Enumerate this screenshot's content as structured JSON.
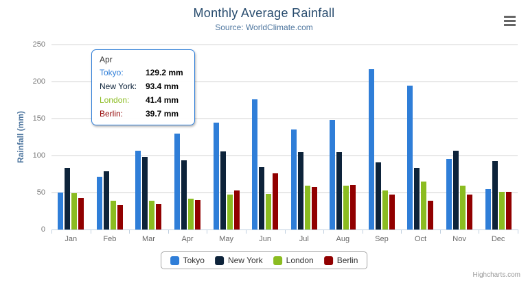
{
  "chart_data": {
    "type": "bar",
    "title": "Monthly Average Rainfall",
    "subtitle": "Source: WorldClimate.com",
    "categories": [
      "Jan",
      "Feb",
      "Mar",
      "Apr",
      "May",
      "Jun",
      "Jul",
      "Aug",
      "Sep",
      "Oct",
      "Nov",
      "Dec"
    ],
    "series": [
      {
        "name": "Tokyo",
        "color": "#2f7ed8",
        "values": [
          49.9,
          71.5,
          106.4,
          129.2,
          144.0,
          176.0,
          135.6,
          148.5,
          216.4,
          194.1,
          95.6,
          54.4
        ]
      },
      {
        "name": "New York",
        "color": "#0d233a",
        "values": [
          83.6,
          78.8,
          98.5,
          93.4,
          106.0,
          84.5,
          105.0,
          104.3,
          91.2,
          83.5,
          106.6,
          92.3
        ]
      },
      {
        "name": "London",
        "color": "#8bbc21",
        "values": [
          48.9,
          38.8,
          39.3,
          41.4,
          47.0,
          48.3,
          59.0,
          59.6,
          52.4,
          65.2,
          59.3,
          51.2
        ]
      },
      {
        "name": "Berlin",
        "color": "#910000",
        "values": [
          42.4,
          33.2,
          34.5,
          39.7,
          52.6,
          75.5,
          57.4,
          60.4,
          47.6,
          39.1,
          46.8,
          51.1
        ]
      }
    ],
    "xlabel": "",
    "ylabel": "Rainfall (mm)",
    "ylim": [
      0,
      250
    ],
    "yticks": [
      0,
      50,
      100,
      150,
      200,
      250
    ],
    "grid": true,
    "legend_position": "bottom"
  },
  "tooltip": {
    "header": "Apr",
    "rows": [
      {
        "label": "Tokyo:",
        "value": "129.2 mm",
        "color": "#2f7ed8"
      },
      {
        "label": "New York:",
        "value": "93.4 mm",
        "color": "#0d233a"
      },
      {
        "label": "London:",
        "value": "41.4 mm",
        "color": "#8bbc21"
      },
      {
        "label": "Berlin:",
        "value": "39.7 mm",
        "color": "#910000"
      }
    ]
  },
  "credits": {
    "label": "Highcharts.com"
  },
  "theme": {
    "title_color": "#274b6d",
    "subtitle_color": "#4d759e",
    "axis_title_color": "#4d759e",
    "axis_label_color": "#666666",
    "gridline_color": "#d0d0d0",
    "axis_line_color": "#c0d0e0",
    "menu_icon_color": "#666666",
    "credits_color": "#999999"
  }
}
